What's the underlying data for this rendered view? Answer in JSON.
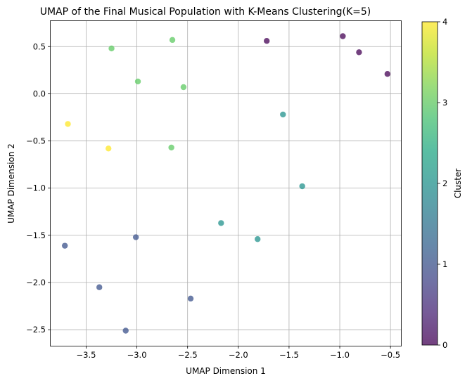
{
  "chart_data": {
    "type": "scatter",
    "title": "UMAP of the Final Musical Population with K-Means Clustering(K=5)",
    "xlabel": "UMAP Dimension 1",
    "ylabel": "UMAP Dimension 2",
    "xlim": [
      -3.85,
      -0.39
    ],
    "ylim": [
      -2.67,
      0.77
    ],
    "xticks": [
      -3.5,
      -3.0,
      -2.5,
      -2.0,
      -1.5,
      -1.0,
      -0.5
    ],
    "yticks": [
      -2.5,
      -2.0,
      -1.5,
      -1.0,
      -0.5,
      0.0,
      0.5
    ],
    "xtick_labels": [
      "−3.5",
      "−3.0",
      "−2.5",
      "−2.0",
      "−1.5",
      "−1.0",
      "−0.5"
    ],
    "ytick_labels": [
      "−2.5",
      "−2.0",
      "−1.5",
      "−1.0",
      "−0.5",
      "0.0",
      "0.5"
    ],
    "grid": true,
    "colorbar": {
      "label": "Cluster",
      "range": [
        0,
        4
      ],
      "ticks": [
        0,
        1,
        2,
        3,
        4
      ],
      "tick_labels": [
        "0",
        "1",
        "2",
        "3",
        "4"
      ],
      "colormap": "viridis",
      "alpha": 0.75
    },
    "cluster_colors": [
      "#440154",
      "#3b528b",
      "#21918c",
      "#5ec962",
      "#fde725"
    ],
    "points": [
      {
        "x": -1.72,
        "y": 0.56,
        "cluster": 0
      },
      {
        "x": -0.97,
        "y": 0.61,
        "cluster": 0
      },
      {
        "x": -0.81,
        "y": 0.44,
        "cluster": 0
      },
      {
        "x": -0.53,
        "y": 0.21,
        "cluster": 0
      },
      {
        "x": -3.71,
        "y": -1.61,
        "cluster": 1
      },
      {
        "x": -3.01,
        "y": -1.52,
        "cluster": 1
      },
      {
        "x": -3.37,
        "y": -2.05,
        "cluster": 1
      },
      {
        "x": -2.47,
        "y": -2.17,
        "cluster": 1
      },
      {
        "x": -3.11,
        "y": -2.51,
        "cluster": 1
      },
      {
        "x": -1.56,
        "y": -0.22,
        "cluster": 2
      },
      {
        "x": -1.37,
        "y": -0.98,
        "cluster": 2
      },
      {
        "x": -2.17,
        "y": -1.37,
        "cluster": 2
      },
      {
        "x": -1.81,
        "y": -1.54,
        "cluster": 2
      },
      {
        "x": -3.25,
        "y": 0.48,
        "cluster": 3
      },
      {
        "x": -2.65,
        "y": 0.57,
        "cluster": 3
      },
      {
        "x": -2.99,
        "y": 0.13,
        "cluster": 3
      },
      {
        "x": -2.54,
        "y": 0.07,
        "cluster": 3
      },
      {
        "x": -2.66,
        "y": -0.57,
        "cluster": 3
      },
      {
        "x": -3.68,
        "y": -0.32,
        "cluster": 4
      },
      {
        "x": -3.28,
        "y": -0.58,
        "cluster": 4
      }
    ]
  }
}
